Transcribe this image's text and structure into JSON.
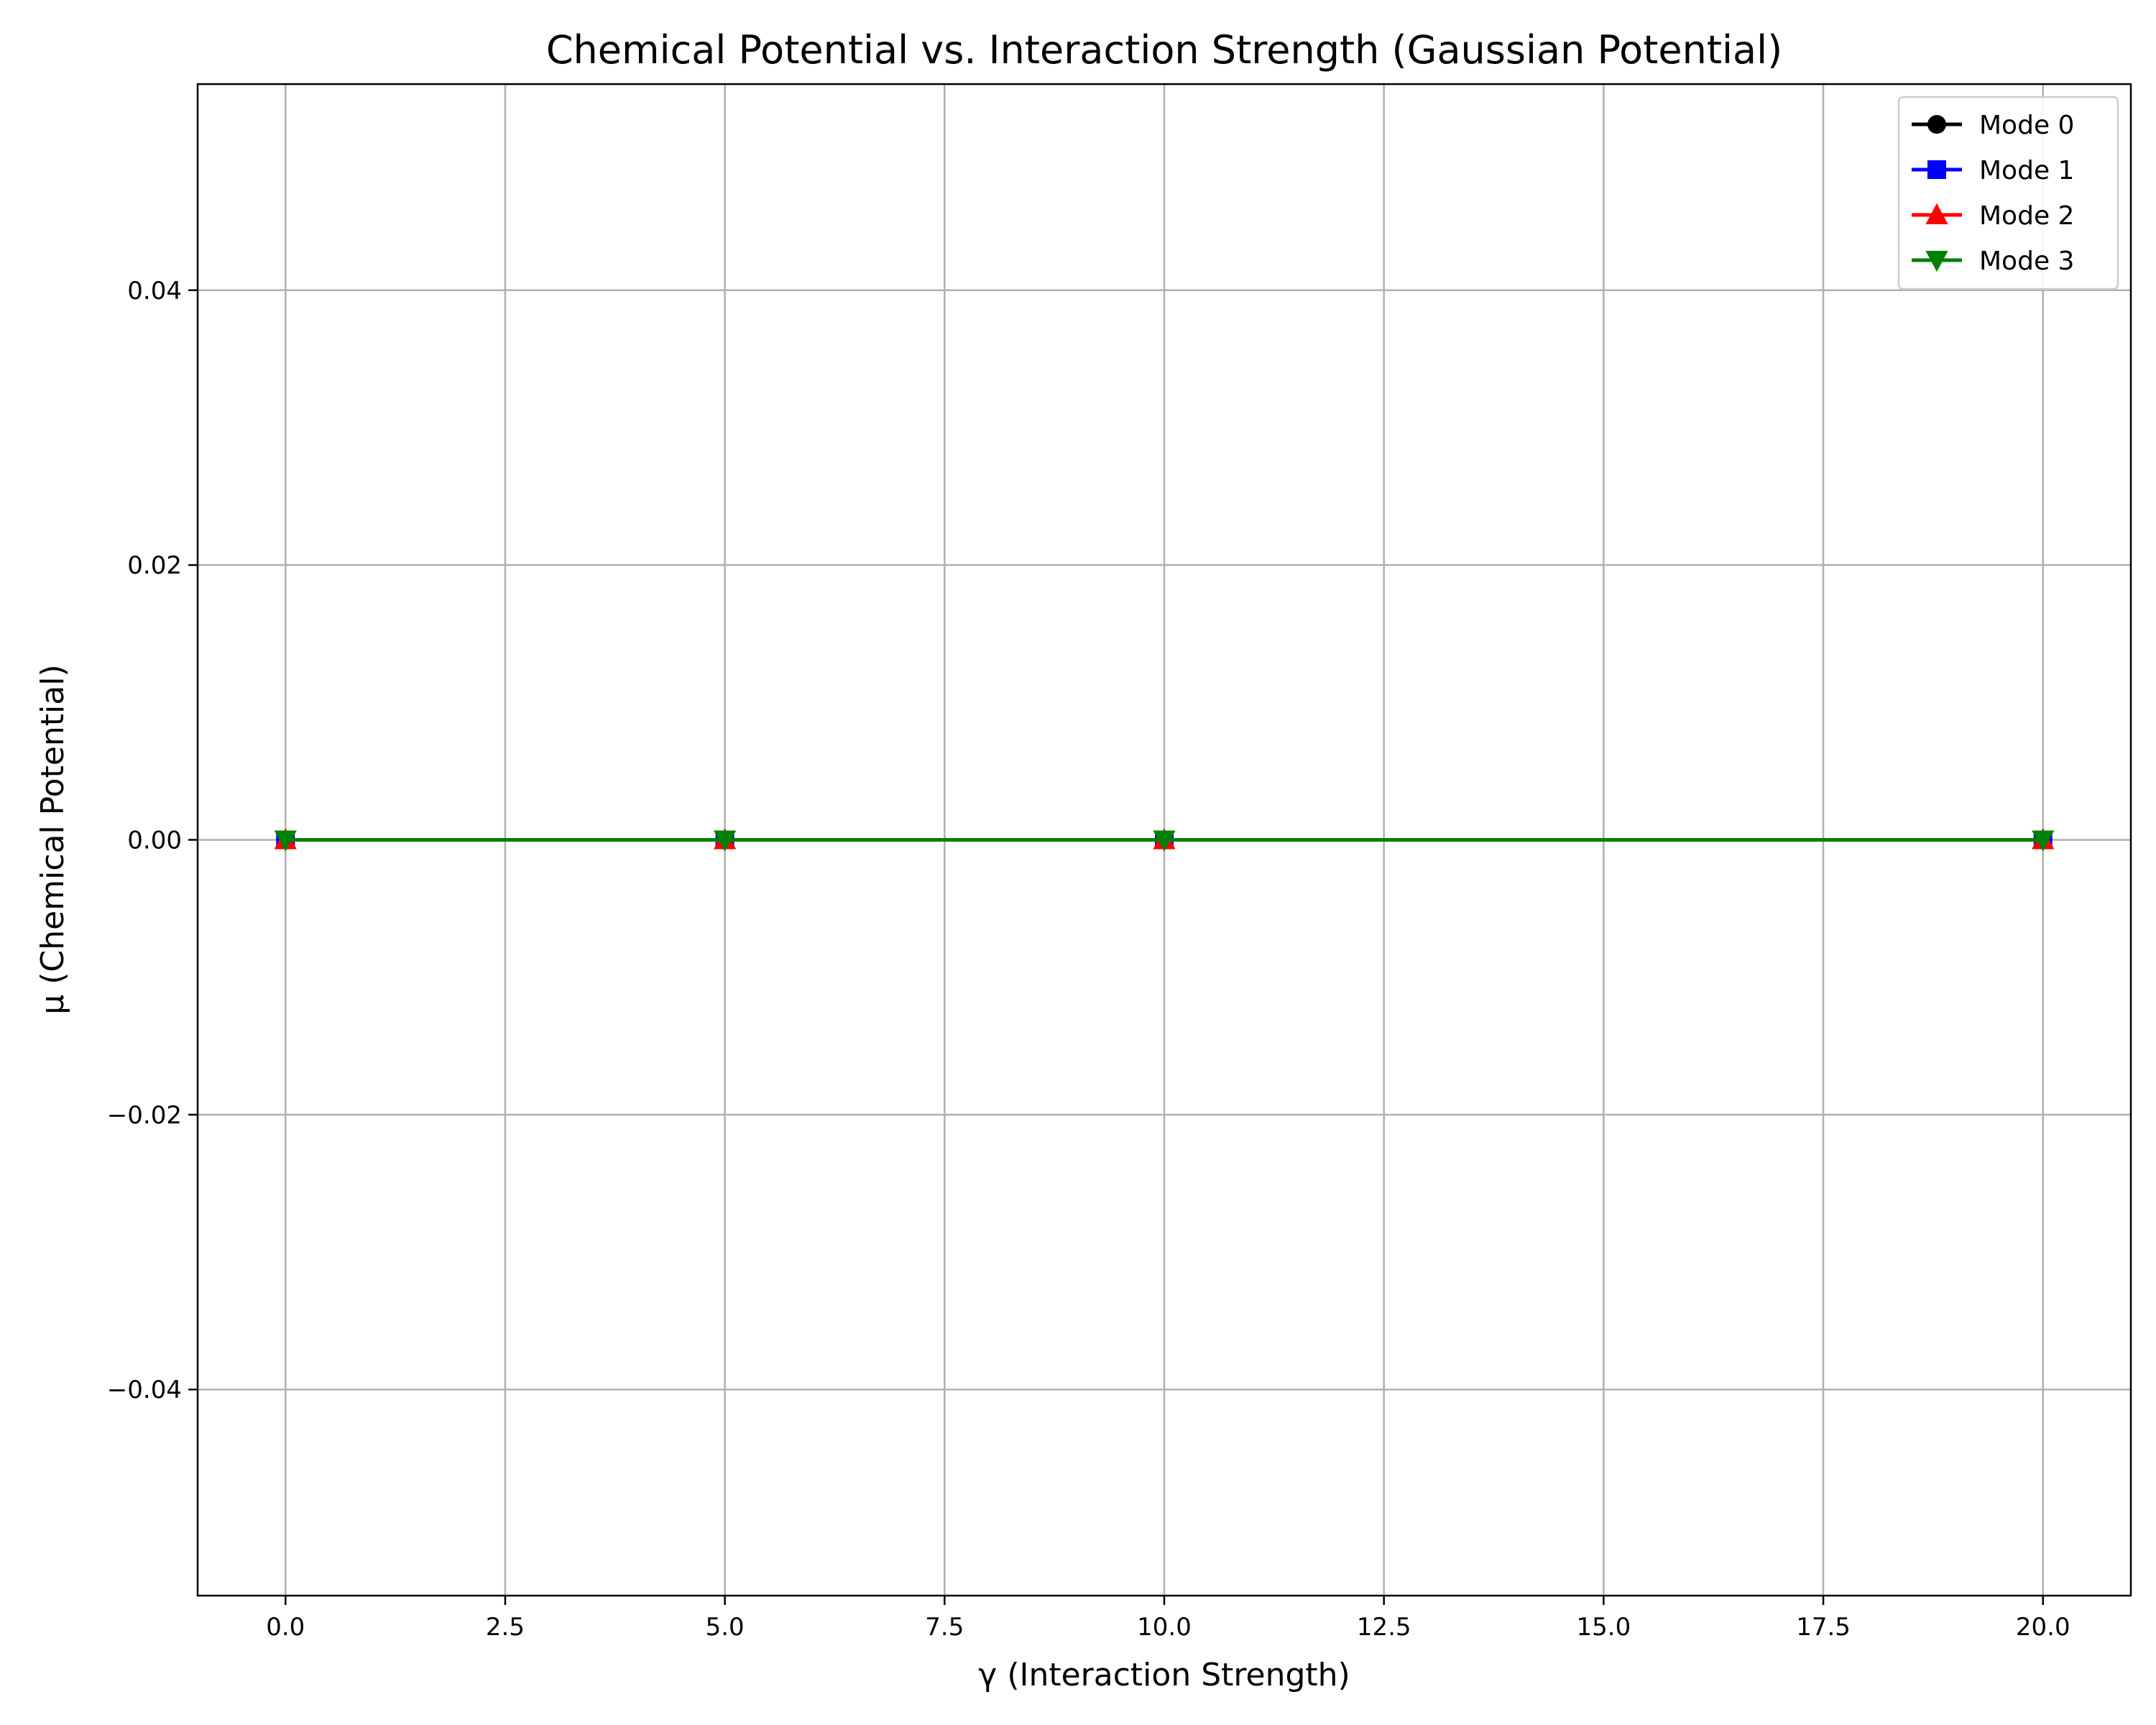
{
  "chart_data": {
    "type": "line",
    "title": "Chemical Potential vs. Interaction Strength (Gaussian Potential)",
    "xlabel": "γ (Interaction Strength)",
    "ylabel": "μ (Chemical Potential)",
    "xlim": [
      -1.0,
      21.0
    ],
    "ylim": [
      -0.055,
      0.055
    ],
    "x_ticks": [
      0.0,
      2.5,
      5.0,
      7.5,
      10.0,
      12.5,
      15.0,
      17.5,
      20.0
    ],
    "x_tick_labels": [
      "0.0",
      "2.5",
      "5.0",
      "7.5",
      "10.0",
      "12.5",
      "15.0",
      "17.5",
      "20.0"
    ],
    "y_ticks": [
      -0.04,
      -0.02,
      0.0,
      0.02,
      0.04
    ],
    "y_tick_labels": [
      "−0.04",
      "−0.02",
      "0.00",
      "0.02",
      "0.04"
    ],
    "grid": true,
    "legend_position": "top-right",
    "x": [
      0,
      5,
      10,
      20
    ],
    "series": [
      {
        "name": "Mode 0",
        "values": [
          0,
          0,
          0,
          0
        ],
        "color": "#000000",
        "marker": "circle"
      },
      {
        "name": "Mode 1",
        "values": [
          0,
          0,
          0,
          0
        ],
        "color": "#0000ff",
        "marker": "square"
      },
      {
        "name": "Mode 2",
        "values": [
          0,
          0,
          0,
          0
        ],
        "color": "#ff0000",
        "marker": "triangle-up"
      },
      {
        "name": "Mode 3",
        "values": [
          0,
          0,
          0,
          0
        ],
        "color": "#008000",
        "marker": "triangle-down"
      }
    ]
  }
}
